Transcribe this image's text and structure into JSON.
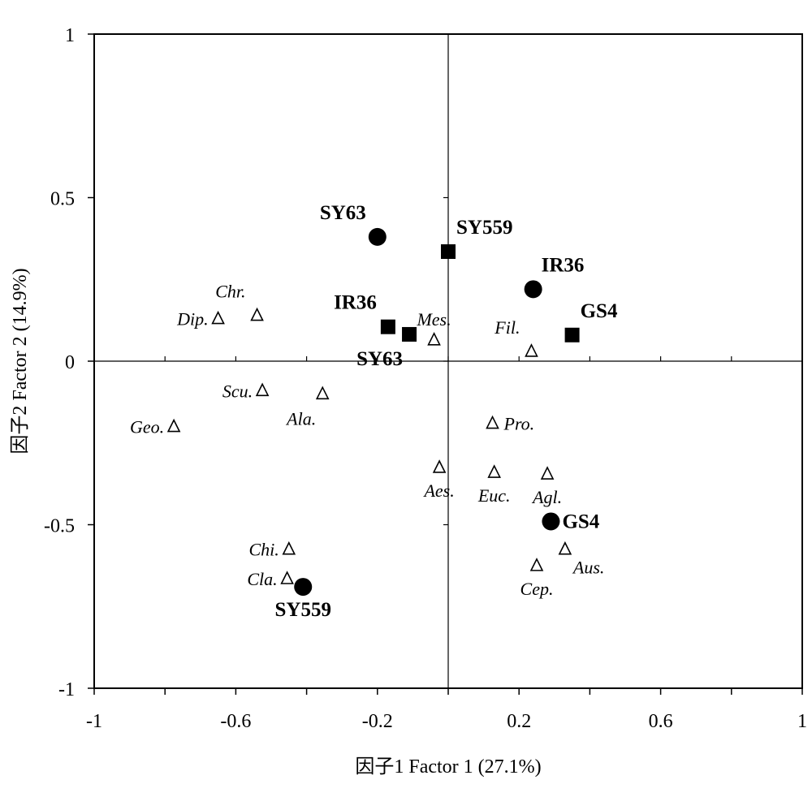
{
  "chart_data": {
    "type": "scatter",
    "title": "",
    "xlabel": "因子1  Factor 1 (27.1%)",
    "ylabel": "因子2  Factor 2 (14.9%)",
    "xlim": [
      -1,
      1
    ],
    "ylim": [
      -1,
      1
    ],
    "x_ticks": [
      {
        "value": -1,
        "label": "-1"
      },
      {
        "value": -0.6,
        "label": "-0.6"
      },
      {
        "value": -0.2,
        "label": "-0.2"
      },
      {
        "value": 0.2,
        "label": "0.2"
      },
      {
        "value": 0.6,
        "label": "0.6"
      },
      {
        "value": 1,
        "label": "1"
      }
    ],
    "y_ticks": [
      {
        "value": 1,
        "label": "1"
      },
      {
        "value": 0.5,
        "label": "0.5"
      },
      {
        "value": 0,
        "label": "0"
      },
      {
        "value": -0.5,
        "label": "-0.5"
      },
      {
        "value": -1,
        "label": "-1"
      }
    ],
    "grid": false,
    "legend": "none",
    "series": [
      {
        "marker": "filled-circle",
        "points": [
          {
            "label": "SY63",
            "x": -0.2,
            "y": 0.38,
            "label_pos": "above-left"
          },
          {
            "label": "IR36",
            "x": 0.24,
            "y": 0.22,
            "label_pos": "above-right"
          },
          {
            "label": "GS4",
            "x": 0.29,
            "y": -0.49,
            "label_pos": "right"
          },
          {
            "label": "SY559",
            "x": -0.41,
            "y": -0.69,
            "label_pos": "below"
          }
        ]
      },
      {
        "marker": "filled-square",
        "points": [
          {
            "label": "SY559",
            "x": 0.0,
            "y": 0.335,
            "label_pos": "above-right"
          },
          {
            "label": "IR36",
            "x": -0.17,
            "y": 0.105,
            "label_pos": "above-left"
          },
          {
            "label": "SY63",
            "x": -0.11,
            "y": 0.082,
            "label_pos": "below-left"
          },
          {
            "label": "GS4",
            "x": 0.35,
            "y": 0.08,
            "label_pos": "above-right"
          }
        ]
      },
      {
        "marker": "open-triangle",
        "points": [
          {
            "label": "Dip.",
            "x": -0.65,
            "y": 0.13,
            "label_pos": "left"
          },
          {
            "label": "Chr.",
            "x": -0.54,
            "y": 0.14,
            "label_pos": "above-left"
          },
          {
            "label": "Mes.",
            "x": -0.04,
            "y": 0.065,
            "label_pos": "above"
          },
          {
            "label": "Fil.",
            "x": 0.235,
            "y": 0.03,
            "label_pos": "above-left"
          },
          {
            "label": "Scu.",
            "x": -0.525,
            "y": -0.09,
            "label_pos": "left"
          },
          {
            "label": "Ala.",
            "x": -0.355,
            "y": -0.1,
            "label_pos": "below-left"
          },
          {
            "label": "Geo.",
            "x": -0.775,
            "y": -0.2,
            "label_pos": "left"
          },
          {
            "label": "Pro.",
            "x": 0.125,
            "y": -0.19,
            "label_pos": "right"
          },
          {
            "label": "Aes.",
            "x": -0.025,
            "y": -0.325,
            "label_pos": "below"
          },
          {
            "label": "Euc.",
            "x": 0.13,
            "y": -0.34,
            "label_pos": "below"
          },
          {
            "label": "Agl.",
            "x": 0.28,
            "y": -0.345,
            "label_pos": "below"
          },
          {
            "label": "Chi.",
            "x": -0.45,
            "y": -0.575,
            "label_pos": "left"
          },
          {
            "label": "Aus.",
            "x": 0.33,
            "y": -0.575,
            "label_pos": "below-right"
          },
          {
            "label": "Cla.",
            "x": -0.455,
            "y": -0.665,
            "label_pos": "left"
          },
          {
            "label": "Cep.",
            "x": 0.25,
            "y": -0.625,
            "label_pos": "below"
          }
        ]
      }
    ]
  }
}
